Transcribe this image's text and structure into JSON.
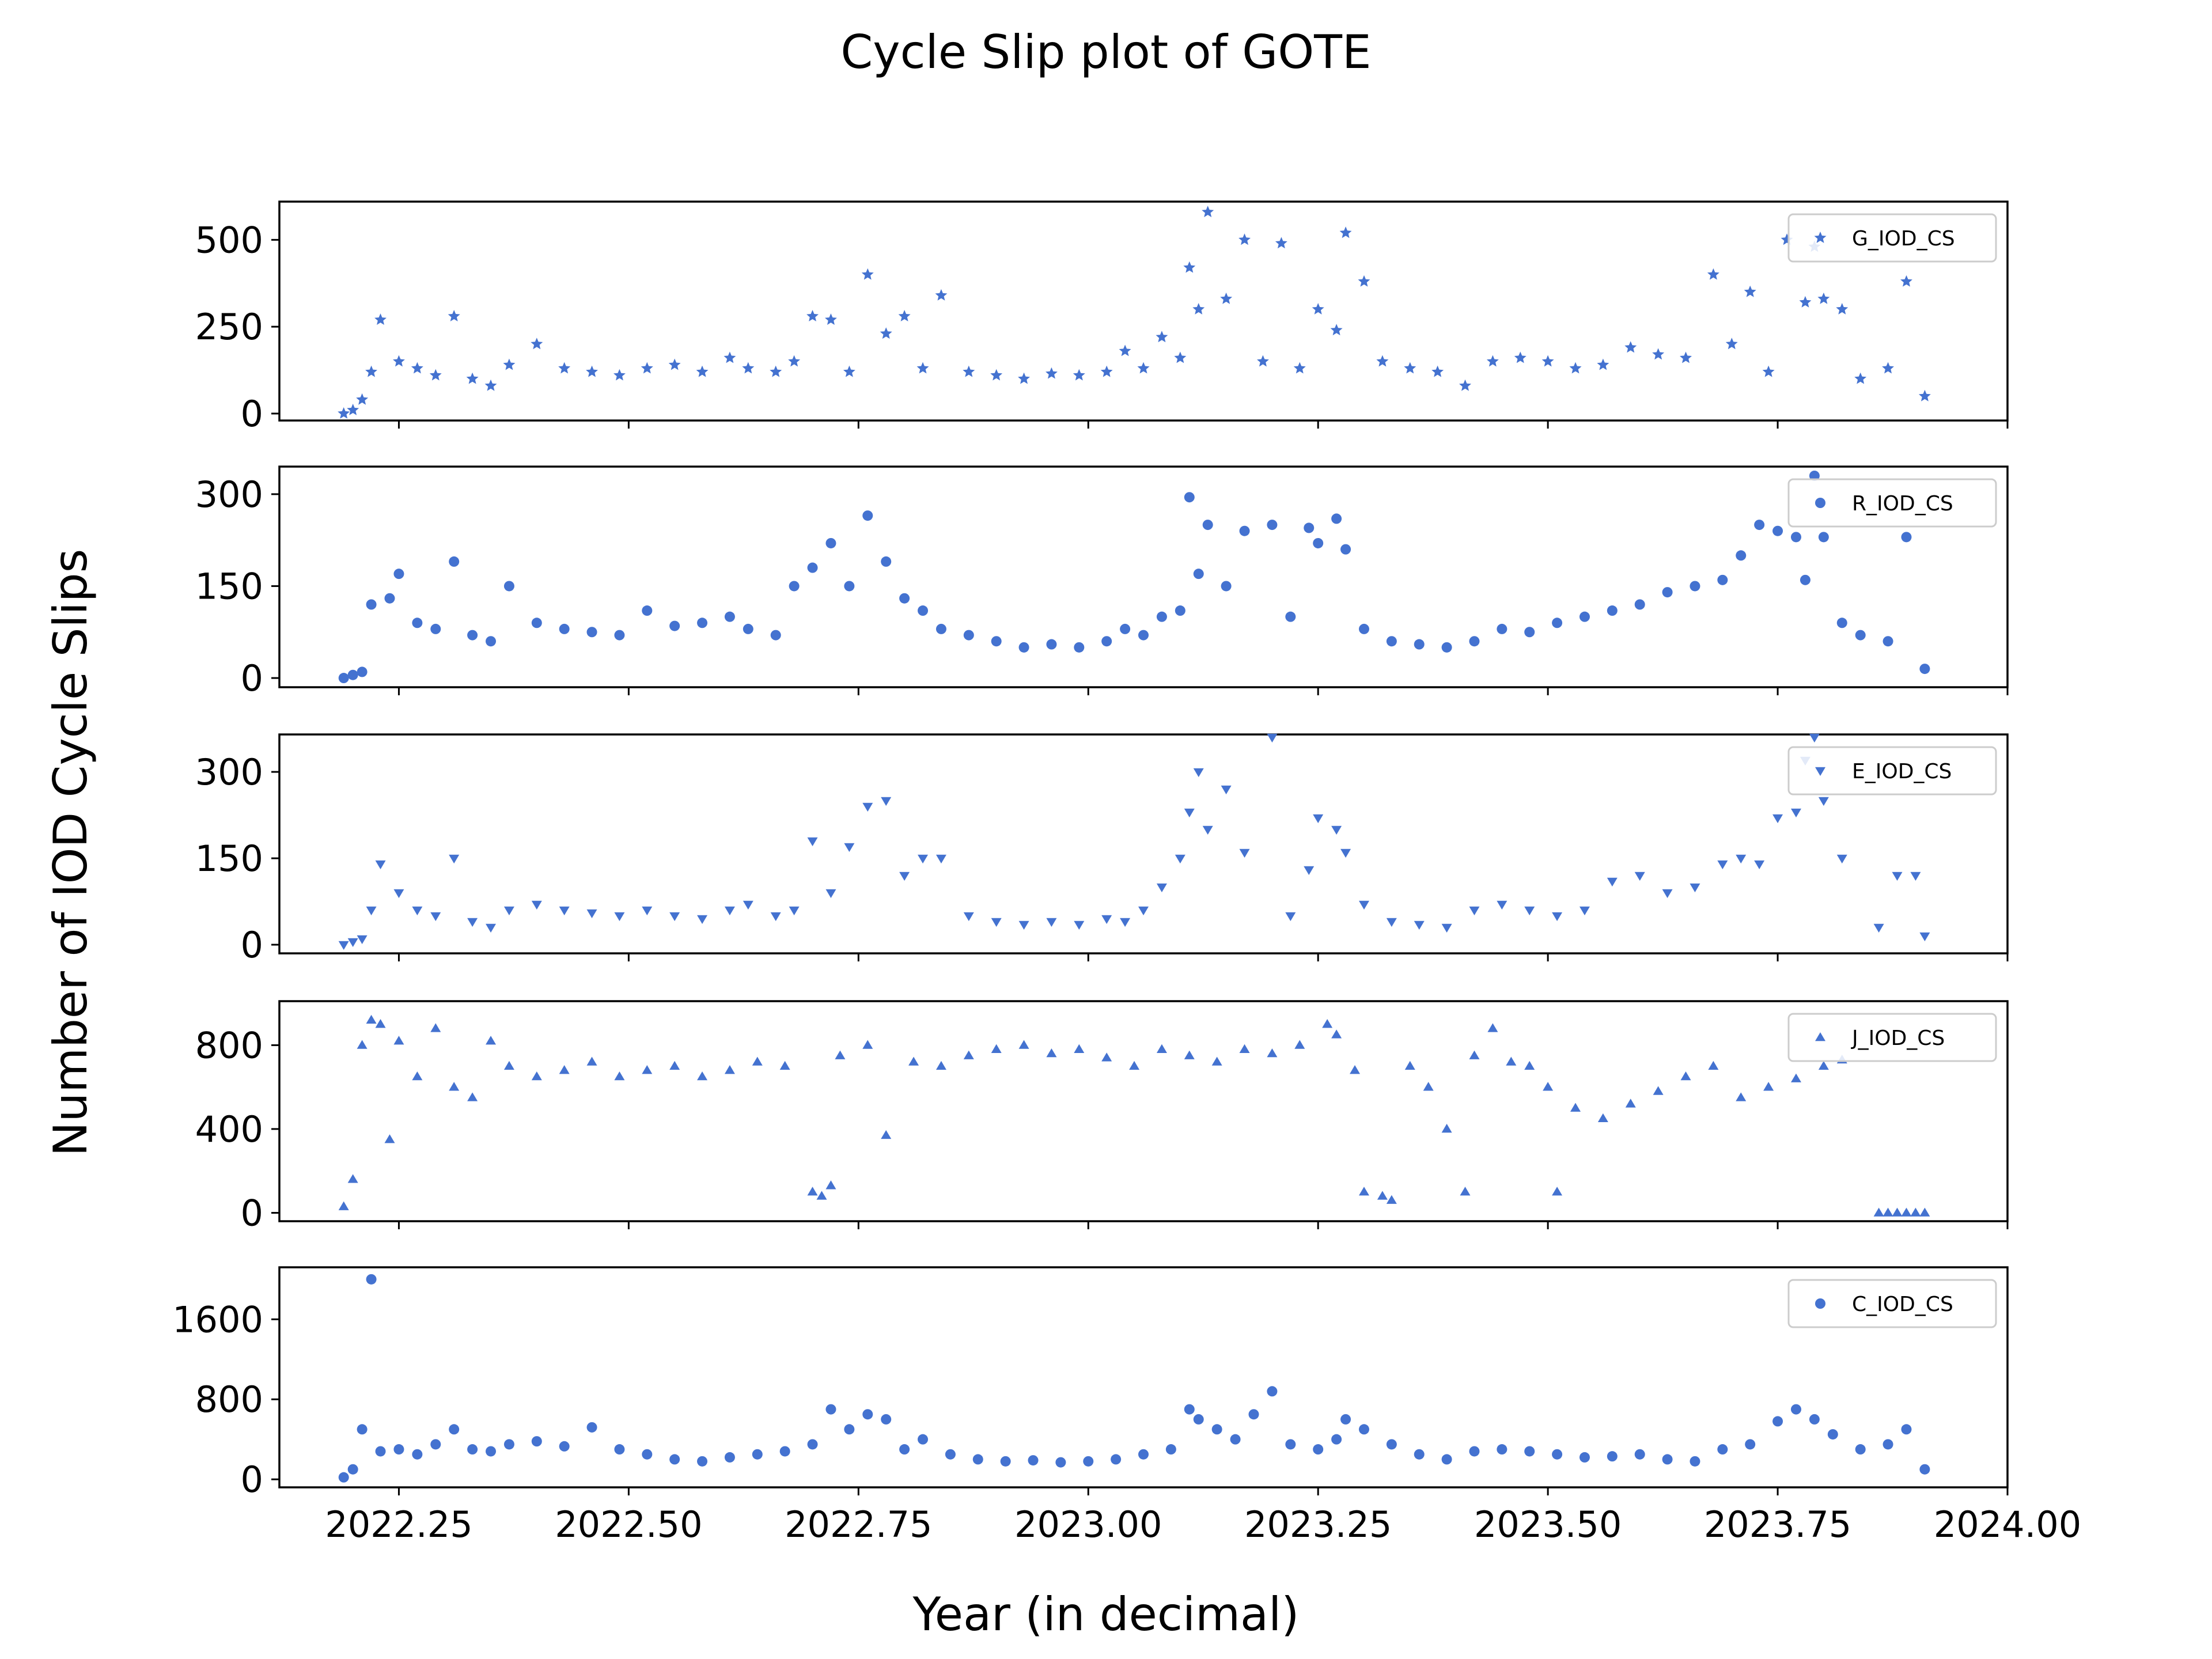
{
  "figure": {
    "title": "Cycle Slip plot of GOTE",
    "ylabel": "Number of IOD Cycle Slips",
    "xlabel": "Year (in decimal)"
  },
  "colors": {
    "marker": "#4472D0",
    "axis": "#000000",
    "legend_border": "#cccccc"
  },
  "chart_data": [
    {
      "type": "scatter",
      "marker": "star",
      "name": "G_IOD_CS",
      "xlim": [
        2022.12,
        2024.0
      ],
      "ylim": [
        -20,
        610
      ],
      "yticks": [
        0,
        250,
        500
      ],
      "ytick_labels": [
        "0",
        "250",
        "500"
      ],
      "xticks": [
        2022.25,
        2022.5,
        2022.75,
        2023.0,
        2023.25,
        2023.5,
        2023.75,
        2024.0
      ],
      "xtick_labels": [
        "2022.25",
        "2022.50",
        "2022.75",
        "2023.00",
        "2023.25",
        "2023.50",
        "2023.75",
        "2024.00"
      ],
      "show_xtick_labels": false,
      "legend": "upper right",
      "x": [
        2022.19,
        2022.2,
        2022.21,
        2022.22,
        2022.23,
        2022.25,
        2022.27,
        2022.29,
        2022.31,
        2022.33,
        2022.35,
        2022.37,
        2022.4,
        2022.43,
        2022.46,
        2022.49,
        2022.52,
        2022.55,
        2022.58,
        2022.61,
        2022.63,
        2022.66,
        2022.68,
        2022.7,
        2022.72,
        2022.74,
        2022.76,
        2022.78,
        2022.8,
        2022.82,
        2022.84,
        2022.87,
        2022.9,
        2022.93,
        2022.96,
        2022.99,
        2023.02,
        2023.04,
        2023.06,
        2023.08,
        2023.1,
        2023.11,
        2023.12,
        2023.13,
        2023.15,
        2023.17,
        2023.19,
        2023.21,
        2023.23,
        2023.25,
        2023.27,
        2023.28,
        2023.3,
        2023.32,
        2023.35,
        2023.38,
        2023.41,
        2023.44,
        2023.47,
        2023.5,
        2023.53,
        2023.56,
        2023.59,
        2023.62,
        2023.65,
        2023.68,
        2023.7,
        2023.72,
        2023.74,
        2023.76,
        2023.78,
        2023.79,
        2023.8,
        2023.82,
        2023.84,
        2023.87,
        2023.89,
        2023.91
      ],
      "y": [
        0,
        10,
        40,
        120,
        270,
        150,
        130,
        110,
        280,
        100,
        80,
        140,
        200,
        130,
        120,
        110,
        130,
        140,
        120,
        160,
        130,
        120,
        150,
        280,
        270,
        120,
        400,
        230,
        280,
        130,
        340,
        120,
        110,
        100,
        115,
        110,
        120,
        180,
        130,
        220,
        160,
        420,
        300,
        580,
        330,
        500,
        150,
        490,
        130,
        300,
        240,
        520,
        380,
        150,
        130,
        120,
        80,
        150,
        160,
        150,
        130,
        140,
        190,
        170,
        160,
        400,
        200,
        350,
        120,
        500,
        320,
        480,
        330,
        300,
        100,
        130,
        380,
        50
      ]
    },
    {
      "type": "scatter",
      "marker": "circle",
      "name": "R_IOD_CS",
      "xlim": [
        2022.12,
        2024.0
      ],
      "ylim": [
        -15,
        345
      ],
      "yticks": [
        0,
        150,
        300
      ],
      "ytick_labels": [
        "0",
        "150",
        "300"
      ],
      "xticks": [
        2022.25,
        2022.5,
        2022.75,
        2023.0,
        2023.25,
        2023.5,
        2023.75,
        2024.0
      ],
      "xtick_labels": [
        "2022.25",
        "2022.50",
        "2022.75",
        "2023.00",
        "2023.25",
        "2023.50",
        "2023.75",
        "2024.00"
      ],
      "show_xtick_labels": false,
      "legend": "upper right",
      "x": [
        2022.19,
        2022.2,
        2022.21,
        2022.22,
        2022.24,
        2022.25,
        2022.27,
        2022.29,
        2022.31,
        2022.33,
        2022.35,
        2022.37,
        2022.4,
        2022.43,
        2022.46,
        2022.49,
        2022.52,
        2022.55,
        2022.58,
        2022.61,
        2022.63,
        2022.66,
        2022.68,
        2022.7,
        2022.72,
        2022.74,
        2022.76,
        2022.78,
        2022.8,
        2022.82,
        2022.84,
        2022.87,
        2022.9,
        2022.93,
        2022.96,
        2022.99,
        2023.02,
        2023.04,
        2023.06,
        2023.08,
        2023.1,
        2023.11,
        2023.12,
        2023.13,
        2023.15,
        2023.17,
        2023.2,
        2023.22,
        2023.24,
        2023.25,
        2023.27,
        2023.28,
        2023.3,
        2023.33,
        2023.36,
        2023.39,
        2023.42,
        2023.45,
        2023.48,
        2023.51,
        2023.54,
        2023.57,
        2023.6,
        2023.63,
        2023.66,
        2023.69,
        2023.71,
        2023.73,
        2023.75,
        2023.77,
        2023.78,
        2023.79,
        2023.8,
        2023.82,
        2023.84,
        2023.87,
        2023.89,
        2023.91
      ],
      "y": [
        0,
        5,
        10,
        120,
        130,
        170,
        90,
        80,
        190,
        70,
        60,
        150,
        90,
        80,
        75,
        70,
        110,
        85,
        90,
        100,
        80,
        70,
        150,
        180,
        220,
        150,
        265,
        190,
        130,
        110,
        80,
        70,
        60,
        50,
        55,
        50,
        60,
        80,
        70,
        100,
        110,
        295,
        170,
        250,
        150,
        240,
        250,
        100,
        245,
        220,
        260,
        210,
        80,
        60,
        55,
        50,
        60,
        80,
        75,
        90,
        100,
        110,
        120,
        140,
        150,
        160,
        200,
        250,
        240,
        230,
        160,
        330,
        230,
        90,
        70,
        60,
        230,
        15
      ]
    },
    {
      "type": "scatter",
      "marker": "triangle-down",
      "name": "E_IOD_CS",
      "xlim": [
        2022.12,
        2024.0
      ],
      "ylim": [
        -15,
        365
      ],
      "yticks": [
        0,
        150,
        300
      ],
      "ytick_labels": [
        "0",
        "150",
        "300"
      ],
      "xticks": [
        2022.25,
        2022.5,
        2022.75,
        2023.0,
        2023.25,
        2023.5,
        2023.75,
        2024.0
      ],
      "xtick_labels": [
        "2022.25",
        "2022.50",
        "2022.75",
        "2023.00",
        "2023.25",
        "2023.50",
        "2023.75",
        "2024.00"
      ],
      "show_xtick_labels": false,
      "legend": "upper right",
      "x": [
        2022.19,
        2022.2,
        2022.21,
        2022.22,
        2022.23,
        2022.25,
        2022.27,
        2022.29,
        2022.31,
        2022.33,
        2022.35,
        2022.37,
        2022.4,
        2022.43,
        2022.46,
        2022.49,
        2022.52,
        2022.55,
        2022.58,
        2022.61,
        2022.63,
        2022.66,
        2022.68,
        2022.7,
        2022.72,
        2022.74,
        2022.76,
        2022.78,
        2022.8,
        2022.82,
        2022.84,
        2022.87,
        2022.9,
        2022.93,
        2022.96,
        2022.99,
        2023.02,
        2023.04,
        2023.06,
        2023.08,
        2023.1,
        2023.11,
        2023.12,
        2023.13,
        2023.15,
        2023.17,
        2023.2,
        2023.22,
        2023.24,
        2023.25,
        2023.27,
        2023.28,
        2023.3,
        2023.33,
        2023.36,
        2023.39,
        2023.42,
        2023.45,
        2023.48,
        2023.51,
        2023.54,
        2023.57,
        2023.6,
        2023.63,
        2023.66,
        2023.69,
        2023.71,
        2023.73,
        2023.75,
        2023.77,
        2023.78,
        2023.79,
        2023.8,
        2023.82,
        2023.86,
        2023.88,
        2023.9,
        2023.91
      ],
      "y": [
        0,
        5,
        10,
        60,
        140,
        90,
        60,
        50,
        150,
        40,
        30,
        60,
        70,
        60,
        55,
        50,
        60,
        50,
        45,
        60,
        70,
        50,
        60,
        180,
        90,
        170,
        240,
        250,
        120,
        150,
        150,
        50,
        40,
        35,
        40,
        35,
        45,
        40,
        60,
        100,
        150,
        230,
        300,
        200,
        270,
        160,
        360,
        50,
        130,
        220,
        200,
        160,
        70,
        40,
        35,
        30,
        60,
        70,
        60,
        50,
        60,
        110,
        120,
        90,
        100,
        140,
        150,
        140,
        220,
        230,
        320,
        360,
        250,
        150,
        30,
        120,
        120,
        15
      ]
    },
    {
      "type": "scatter",
      "marker": "triangle-up",
      "name": "J_IOD_CS",
      "xlim": [
        2022.12,
        2024.0
      ],
      "ylim": [
        -40,
        1010
      ],
      "yticks": [
        0,
        400,
        800
      ],
      "ytick_labels": [
        "0",
        "400",
        "800"
      ],
      "xticks": [
        2022.25,
        2022.5,
        2022.75,
        2023.0,
        2023.25,
        2023.5,
        2023.75,
        2024.0
      ],
      "xtick_labels": [
        "2022.25",
        "2022.50",
        "2022.75",
        "2023.00",
        "2023.25",
        "2023.50",
        "2023.75",
        "2024.00"
      ],
      "show_xtick_labels": false,
      "legend": "upper right",
      "x": [
        2022.19,
        2022.2,
        2022.21,
        2022.22,
        2022.23,
        2022.24,
        2022.25,
        2022.27,
        2022.29,
        2022.31,
        2022.33,
        2022.35,
        2022.37,
        2022.4,
        2022.43,
        2022.46,
        2022.49,
        2022.52,
        2022.55,
        2022.58,
        2022.61,
        2022.64,
        2022.67,
        2022.7,
        2022.71,
        2022.72,
        2022.73,
        2022.76,
        2022.78,
        2022.81,
        2022.84,
        2022.87,
        2022.9,
        2022.93,
        2022.96,
        2022.99,
        2023.02,
        2023.05,
        2023.08,
        2023.11,
        2023.14,
        2023.17,
        2023.2,
        2023.23,
        2023.26,
        2023.27,
        2023.29,
        2023.3,
        2023.32,
        2023.33,
        2023.35,
        2023.37,
        2023.39,
        2023.41,
        2023.42,
        2023.44,
        2023.46,
        2023.48,
        2023.5,
        2023.51,
        2023.53,
        2023.56,
        2023.59,
        2023.62,
        2023.65,
        2023.68,
        2023.71,
        2023.74,
        2023.77,
        2023.8,
        2023.82,
        2023.86,
        2023.87,
        2023.88,
        2023.89,
        2023.9,
        2023.91
      ],
      "y": [
        30,
        160,
        800,
        920,
        900,
        350,
        820,
        650,
        880,
        600,
        550,
        820,
        700,
        650,
        680,
        720,
        650,
        680,
        700,
        650,
        680,
        720,
        700,
        100,
        80,
        130,
        750,
        800,
        370,
        720,
        700,
        750,
        780,
        800,
        760,
        780,
        740,
        700,
        780,
        750,
        720,
        780,
        760,
        800,
        900,
        850,
        680,
        100,
        80,
        60,
        700,
        600,
        400,
        100,
        750,
        880,
        720,
        700,
        600,
        100,
        500,
        450,
        520,
        580,
        650,
        700,
        550,
        600,
        640,
        700,
        730,
        0,
        0,
        0,
        0,
        0,
        0
      ]
    },
    {
      "type": "scatter",
      "marker": "circle",
      "name": "C_IOD_CS",
      "xlim": [
        2022.12,
        2024.0
      ],
      "ylim": [
        -80,
        2120
      ],
      "yticks": [
        0,
        800,
        1600
      ],
      "ytick_labels": [
        "0",
        "800",
        "1600"
      ],
      "xticks": [
        2022.25,
        2022.5,
        2022.75,
        2023.0,
        2023.25,
        2023.5,
        2023.75,
        2024.0
      ],
      "xtick_labels": [
        "2022.25",
        "2022.50",
        "2022.75",
        "2023.00",
        "2023.25",
        "2023.50",
        "2023.75",
        "2024.00"
      ],
      "show_xtick_labels": true,
      "legend": "upper right",
      "x": [
        2022.19,
        2022.2,
        2022.21,
        2022.22,
        2022.23,
        2022.25,
        2022.27,
        2022.29,
        2022.31,
        2022.33,
        2022.35,
        2022.37,
        2022.4,
        2022.43,
        2022.46,
        2022.49,
        2022.52,
        2022.55,
        2022.58,
        2022.61,
        2022.64,
        2022.67,
        2022.7,
        2022.72,
        2022.74,
        2022.76,
        2022.78,
        2022.8,
        2022.82,
        2022.85,
        2022.88,
        2022.91,
        2022.94,
        2022.97,
        2023.0,
        2023.03,
        2023.06,
        2023.09,
        2023.11,
        2023.12,
        2023.14,
        2023.16,
        2023.18,
        2023.2,
        2023.22,
        2023.25,
        2023.27,
        2023.28,
        2023.3,
        2023.33,
        2023.36,
        2023.39,
        2023.42,
        2023.45,
        2023.48,
        2023.51,
        2023.54,
        2023.57,
        2023.6,
        2023.63,
        2023.66,
        2023.69,
        2023.72,
        2023.75,
        2023.77,
        2023.79,
        2023.81,
        2023.84,
        2023.87,
        2023.89,
        2023.91
      ],
      "y": [
        20,
        100,
        500,
        2000,
        280,
        300,
        250,
        350,
        500,
        300,
        280,
        350,
        380,
        330,
        520,
        300,
        250,
        200,
        180,
        220,
        250,
        280,
        350,
        700,
        500,
        650,
        600,
        300,
        400,
        250,
        200,
        180,
        190,
        170,
        180,
        200,
        250,
        300,
        700,
        600,
        500,
        400,
        650,
        880,
        350,
        300,
        400,
        600,
        500,
        350,
        250,
        200,
        280,
        300,
        280,
        250,
        220,
        230,
        250,
        200,
        180,
        300,
        350,
        580,
        700,
        600,
        450,
        300,
        350,
        500,
        100
      ]
    }
  ]
}
